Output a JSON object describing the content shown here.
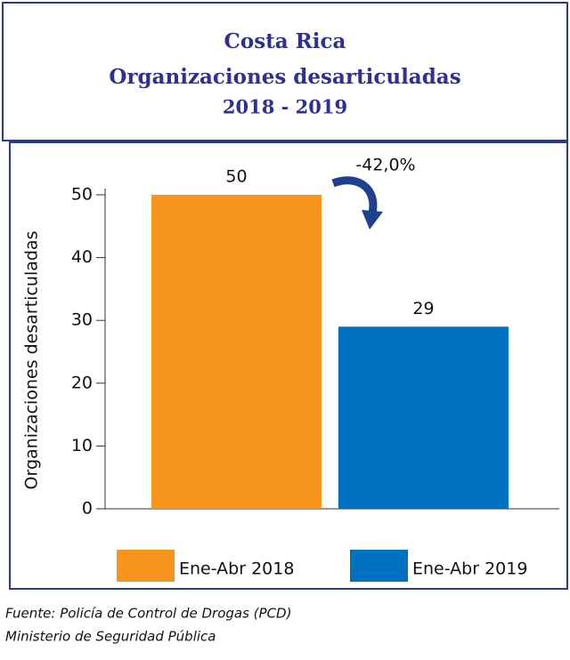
{
  "chart_data": {
    "type": "bar",
    "title": [
      "Costa Rica",
      "Organizaciones desarticuladas"
    ],
    "subtitle": "2018 - 2019",
    "ylabel": "Organizaciones desarticuladas",
    "series": [
      {
        "name": "Ene-Abr 2018",
        "color": "#f7941d",
        "values": [
          50
        ]
      },
      {
        "name": "Ene-Abr 2019",
        "color": "#0070c0",
        "values": [
          29
        ]
      }
    ],
    "annotation": "-42,0%",
    "ylim": [
      0,
      50
    ],
    "yticks": [
      0,
      10,
      20,
      30,
      40,
      50
    ],
    "legend": "bottom",
    "source": [
      "Fuente: Policía de Control de Drogas (PCD)",
      "Ministerio de Seguridad Pública"
    ]
  }
}
